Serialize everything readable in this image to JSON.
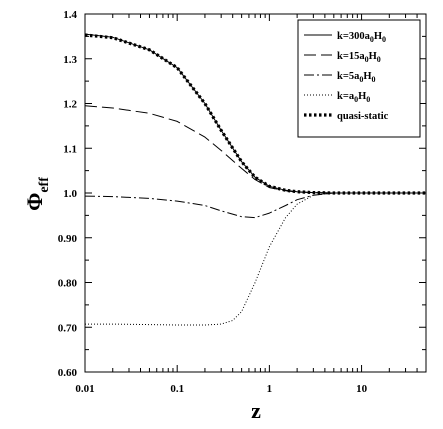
{
  "chart_data": {
    "type": "line",
    "xlabel": "z",
    "ylabel": "Φ",
    "ylabel_sub": "eff",
    "xscale": "log",
    "xlim": [
      0.01,
      50
    ],
    "ylim": [
      0.6,
      1.4
    ],
    "x_ticks": [
      0.01,
      0.1,
      1,
      10
    ],
    "x_tick_labels": [
      "0.01",
      "0.1",
      "1",
      "10"
    ],
    "y_ticks": [
      0.6,
      0.7,
      0.8,
      0.9,
      1.0,
      1.1,
      1.2,
      1.3,
      1.4
    ],
    "y_tick_labels": [
      "0.60",
      "0.70",
      "0.80",
      "0.90",
      "1.0",
      "1.1",
      "1.2",
      "1.3",
      "1.4"
    ],
    "legend_position": "top-right",
    "series": [
      {
        "name": "k=300a",
        "name_sub1": "0",
        "name_mid": "H",
        "name_sub2": "0",
        "style": "solid",
        "x": [
          0.01,
          0.02,
          0.05,
          0.1,
          0.2,
          0.3,
          0.5,
          0.7,
          1,
          1.5,
          2,
          3,
          5,
          10,
          20,
          50
        ],
        "y": [
          1.355,
          1.348,
          1.32,
          1.28,
          1.2,
          1.14,
          1.07,
          1.035,
          1.015,
          1.006,
          1.003,
          1.001,
          1.0,
          1.0,
          1.0,
          1.0
        ]
      },
      {
        "name": "k=15a",
        "name_sub1": "0",
        "name_mid": "H",
        "name_sub2": "0",
        "style": "long-dash",
        "x": [
          0.01,
          0.02,
          0.05,
          0.1,
          0.2,
          0.3,
          0.5,
          0.7,
          1,
          1.5,
          2,
          3,
          5,
          10,
          20,
          50
        ],
        "y": [
          1.195,
          1.19,
          1.178,
          1.16,
          1.125,
          1.095,
          1.055,
          1.03,
          1.012,
          1.005,
          1.002,
          1.001,
          1.0,
          1.0,
          1.0,
          1.0
        ]
      },
      {
        "name": "k=5a",
        "name_sub1": "0",
        "name_mid": "H",
        "name_sub2": "0",
        "style": "dash-dot",
        "x": [
          0.01,
          0.02,
          0.05,
          0.1,
          0.2,
          0.3,
          0.5,
          0.7,
          1,
          1.5,
          2,
          3,
          5,
          10,
          20,
          50
        ],
        "y": [
          0.993,
          0.992,
          0.988,
          0.982,
          0.972,
          0.96,
          0.947,
          0.945,
          0.955,
          0.972,
          0.985,
          0.995,
          1.0,
          1.0,
          1.0,
          1.0
        ]
      },
      {
        "name": "k=a",
        "name_sub1": "0",
        "name_mid": "H",
        "name_sub2": "0",
        "style": "dotted",
        "x": [
          0.01,
          0.02,
          0.05,
          0.1,
          0.2,
          0.3,
          0.4,
          0.5,
          0.7,
          1,
          1.5,
          2,
          3,
          5,
          10,
          20,
          50
        ],
        "y": [
          0.707,
          0.707,
          0.706,
          0.705,
          0.705,
          0.707,
          0.715,
          0.735,
          0.8,
          0.88,
          0.945,
          0.975,
          0.995,
          1.0,
          1.0,
          1.0,
          1.0
        ]
      },
      {
        "name": "quasi-static",
        "style": "thick-dotted",
        "x": [
          0.01,
          0.02,
          0.05,
          0.1,
          0.2,
          0.3,
          0.5,
          0.7,
          1,
          1.5,
          2,
          3,
          5,
          10,
          20,
          50
        ],
        "y": [
          1.353,
          1.347,
          1.32,
          1.28,
          1.2,
          1.14,
          1.07,
          1.035,
          1.015,
          1.006,
          1.003,
          1.001,
          1.0,
          1.0,
          1.0,
          1.0
        ]
      }
    ]
  }
}
